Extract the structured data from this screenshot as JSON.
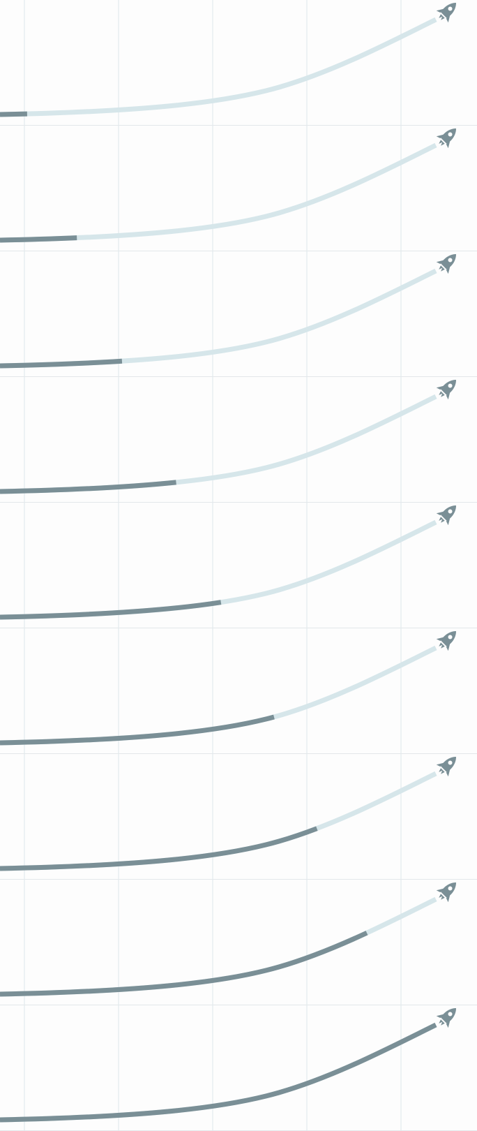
{
  "colors": {
    "background": "#fdfdfd",
    "separator": "#e3e7ea",
    "gridline": "#dde6ea",
    "track": "#d6e6ea",
    "progress": "#7a8f96",
    "rocket": "#7a8f96"
  },
  "icon": "rocket-icon",
  "panels": [
    {
      "progress": 0.06
    },
    {
      "progress": 0.17
    },
    {
      "progress": 0.27
    },
    {
      "progress": 0.39
    },
    {
      "progress": 0.49
    },
    {
      "progress": 0.61
    },
    {
      "progress": 0.71
    },
    {
      "progress": 0.83
    },
    {
      "progress": 1.0
    }
  ]
}
